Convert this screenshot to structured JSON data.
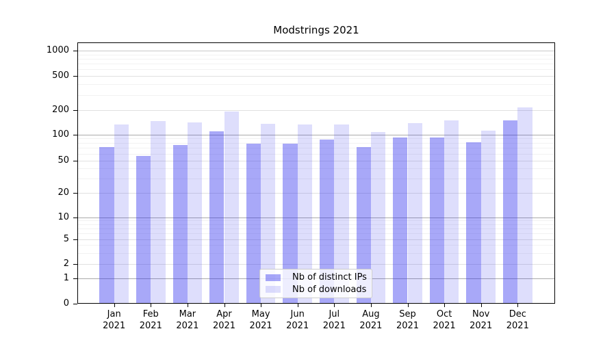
{
  "figure": {
    "title": "Modstrings 2021"
  },
  "chart_data": {
    "type": "bar",
    "title": "Modstrings 2021",
    "yscale": "symlog",
    "grid": true,
    "legend_position": "lower center inside plot",
    "yticks": [
      0,
      1,
      2,
      5,
      10,
      20,
      50,
      100,
      200,
      500,
      1000
    ],
    "ylim": [
      0,
      1400
    ],
    "categories": [
      "Jan 2021",
      "Feb 2021",
      "Mar 2021",
      "Apr 2021",
      "May 2021",
      "Jun 2021",
      "Jul 2021",
      "Aug 2021",
      "Sep 2021",
      "Oct 2021",
      "Nov 2021",
      "Dec 2021"
    ],
    "x_tick_labels": [
      {
        "month": "Jan",
        "year": "2021"
      },
      {
        "month": "Feb",
        "year": "2021"
      },
      {
        "month": "Mar",
        "year": "2021"
      },
      {
        "month": "Apr",
        "year": "2021"
      },
      {
        "month": "May",
        "year": "2021"
      },
      {
        "month": "Jun",
        "year": "2021"
      },
      {
        "month": "Jul",
        "year": "2021"
      },
      {
        "month": "Aug",
        "year": "2021"
      },
      {
        "month": "Sep",
        "year": "2021"
      },
      {
        "month": "Oct",
        "year": "2021"
      },
      {
        "month": "Nov",
        "year": "2021"
      },
      {
        "month": "Dec",
        "year": "2021"
      }
    ],
    "series": [
      {
        "name": "Nb of distinct IPs",
        "color": "#a8a8f8",
        "rgba": "rgba(47,47,239,0.42)",
        "values": [
          71,
          56,
          76,
          110,
          79,
          78,
          87,
          71,
          93,
          93,
          81,
          148
        ]
      },
      {
        "name": "Nb of downloads",
        "color": "#dedefc",
        "rgba": "rgba(47,47,239,0.16)",
        "values": [
          134,
          146,
          142,
          190,
          135,
          134,
          134,
          107,
          139,
          150,
          112,
          215
        ]
      }
    ]
  },
  "colors": {
    "background": "#ffffff",
    "spine": "#000000",
    "grid_major": "#aaaaaa",
    "grid_semi": "#c8c8c8",
    "grid_labeled_minor": "#e0e0e0",
    "grid_minor": "#f2f2f2",
    "tick": "#000000",
    "text": "#000000"
  }
}
